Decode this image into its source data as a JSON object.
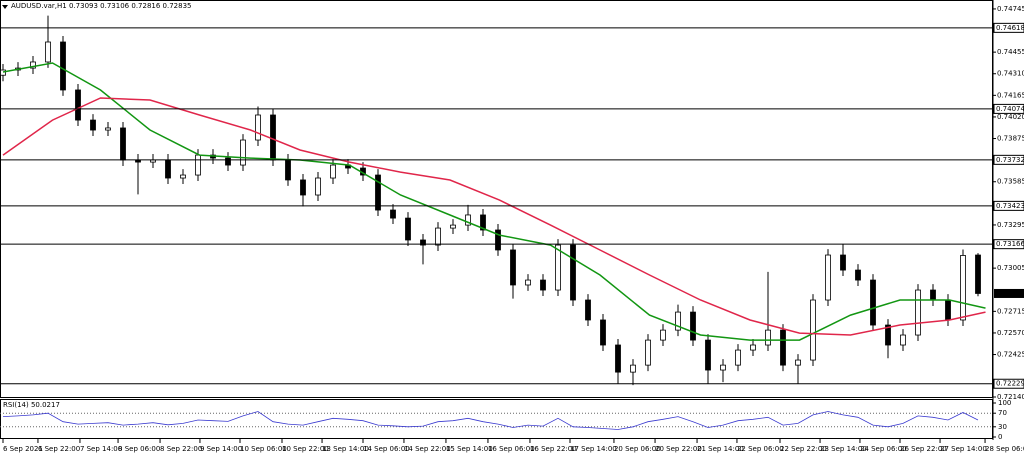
{
  "chart_data": {
    "type": "candlestick",
    "title": "AUDUSD.var,H1",
    "xlim": [
      -0.2,
      66
    ],
    "ylim": [
      0.7214,
      0.74805
    ],
    "yticks": [
      0.74745,
      0.74455,
      {
        "value": 0.7431,
        "label": "0.74310"
      },
      0.74165,
      {
        "value": 0.7402,
        "label": "0.74020"
      },
      0.73875,
      0.73585,
      0.73295,
      0.73005,
      0.72715,
      {
        "value": 0.7257,
        "label": "0.72570"
      },
      0.72425,
      {
        "value": 0.7214,
        "label": "0.72140"
      }
    ],
    "xticks": [
      {
        "value": 0,
        "label": "6 Sep 2021"
      },
      {
        "value": 2.33,
        "label": "6 Sep 22:00"
      },
      {
        "value": 5.13,
        "label": "7 Sep 14:00"
      },
      {
        "value": 7.67,
        "label": "8 Sep 06:00"
      },
      {
        "value": 10.47,
        "label": "8 Sep 22:00"
      },
      {
        "value": 13.13,
        "label": "9 Sep 14:00"
      },
      {
        "value": 15.8,
        "label": "10 Sep 06:00"
      },
      {
        "value": 18.6,
        "label": "10 Sep 22:00"
      },
      {
        "value": 21.27,
        "label": "13 Sep 14:00"
      },
      {
        "value": 24,
        "label": "14 Sep 06:00"
      },
      {
        "value": 26.73,
        "label": "14 Sep 22:00"
      },
      {
        "value": 29.53,
        "label": "15 Sep 14:00"
      },
      {
        "value": 32.33,
        "label": "16 Sep 06:00"
      },
      {
        "value": 35.13,
        "label": "16 Sep 22:00"
      },
      {
        "value": 37.8,
        "label": "17 Sep 14:00"
      },
      {
        "value": 40.73,
        "label": "20 Sep 06:00"
      },
      {
        "value": 43.47,
        "label": "20 Sep 22:00"
      },
      {
        "value": 46.27,
        "label": "21 Sep 14:00"
      },
      {
        "value": 48.93,
        "label": "22 Sep 06:00"
      },
      {
        "value": 51.8,
        "label": "22 Sep 22:00"
      },
      {
        "value": 54.47,
        "label": "23 Sep 14:00"
      },
      {
        "value": 57.13,
        "label": "24 Sep 06:00"
      },
      {
        "value": 59.8,
        "label": "26 Sep 22:00"
      },
      {
        "value": 62.47,
        "label": "27 Sep 14:00"
      },
      {
        "value": 65.47,
        "label": "28 Sep 06:00"
      }
    ],
    "open": [
      0.743,
      0.74335,
      0.74348,
      0.74389,
      0.74523,
      0.74201,
      0.73999,
      0.73932,
      0.73946,
      0.73731,
      0.73717,
      0.73731,
      0.7361,
      0.7363,
      0.73764,
      0.73744,
      0.73697,
      0.73865,
      0.74033,
      0.73731,
      0.73597,
      0.73496,
      0.7361,
      0.73697,
      0.73677,
      0.7363,
      0.73395,
      0.73341,
      0.73194,
      0.7316,
      0.73274,
      0.73294,
      0.73362,
      0.73261,
      0.73127,
      0.72892,
      0.72925,
      0.72858,
      0.7316,
      0.72791,
      0.72657,
      0.72489,
      0.72307,
      0.72354,
      0.72522,
      0.72589,
      0.7271,
      0.72522,
      0.72321,
      0.72354,
      0.72455,
      0.72489,
      0.72589,
      0.72354,
      0.72388,
      0.72791,
      0.73093,
      0.72992,
      0.72925,
      0.72623,
      0.72489,
      0.72556,
      0.72858,
      0.72791,
      0.72657,
      0.73093
    ],
    "high": [
      0.74375,
      0.74388,
      0.74429,
      0.747,
      0.74563,
      0.74241,
      0.74039,
      0.73986,
      0.73986,
      0.73771,
      0.73771,
      0.73771,
      0.7367,
      0.73804,
      0.73804,
      0.73784,
      0.73905,
      0.7409,
      0.74073,
      0.73771,
      0.73637,
      0.7365,
      0.73737,
      0.73737,
      0.73717,
      0.7367,
      0.73435,
      0.73381,
      0.73234,
      0.73314,
      0.73334,
      0.7343,
      0.73402,
      0.73301,
      0.73167,
      0.72965,
      0.72965,
      0.732,
      0.732,
      0.72831,
      0.72697,
      0.72529,
      0.72394,
      0.72562,
      0.72629,
      0.7276,
      0.7275,
      0.72562,
      0.72394,
      0.72495,
      0.72529,
      0.7298,
      0.72629,
      0.72428,
      0.72831,
      0.73133,
      0.73166,
      0.73032,
      0.72965,
      0.72663,
      0.72596,
      0.72898,
      0.72898,
      0.72831,
      0.7313,
      0.73106
    ],
    "low": [
      0.7426,
      0.74295,
      0.74308,
      0.74349,
      0.74161,
      0.73959,
      0.73892,
      0.73892,
      0.73691,
      0.735,
      0.73677,
      0.7357,
      0.7357,
      0.7359,
      0.73704,
      0.73657,
      0.73657,
      0.73825,
      0.73691,
      0.73557,
      0.7342,
      0.73456,
      0.7357,
      0.73637,
      0.7359,
      0.73355,
      0.73301,
      0.73154,
      0.7303,
      0.7312,
      0.73234,
      0.73254,
      0.73221,
      0.73087,
      0.728,
      0.72852,
      0.72818,
      0.72818,
      0.72751,
      0.72617,
      0.72449,
      0.72229,
      0.7222,
      0.72314,
      0.72482,
      0.72549,
      0.72482,
      0.72229,
      0.7224,
      0.72314,
      0.72415,
      0.72449,
      0.72314,
      0.72229,
      0.72348,
      0.72751,
      0.72952,
      0.72885,
      0.72583,
      0.724,
      0.72449,
      0.72516,
      0.72751,
      0.72617,
      0.72617,
      0.72816
    ],
    "close": [
      0.74335,
      0.74348,
      0.74389,
      0.74523,
      0.74201,
      0.73999,
      0.73932,
      0.73946,
      0.73731,
      0.73717,
      0.73731,
      0.7361,
      0.7363,
      0.73764,
      0.73744,
      0.73697,
      0.73865,
      0.74033,
      0.73731,
      0.73597,
      0.73496,
      0.7361,
      0.73697,
      0.73677,
      0.7363,
      0.73395,
      0.73341,
      0.73194,
      0.7316,
      0.73274,
      0.73294,
      0.73362,
      0.73261,
      0.73127,
      0.72892,
      0.72925,
      0.72858,
      0.7316,
      0.72791,
      0.72657,
      0.72489,
      0.72307,
      0.72354,
      0.72522,
      0.72589,
      0.7271,
      0.72522,
      0.72321,
      0.72354,
      0.72455,
      0.72489,
      0.72589,
      0.72354,
      0.72388,
      0.72791,
      0.73093,
      0.72992,
      0.72925,
      0.72623,
      0.72489,
      0.72556,
      0.72858,
      0.72791,
      0.72657,
      0.7309,
      0.72835
    ],
    "ma_x": [
      0,
      3.3,
      6.5,
      9.8,
      13.1,
      16.5,
      19.8,
      23.1,
      26.5,
      29.8,
      33.1,
      36.5,
      39.8,
      43.1,
      46.5,
      49.8,
      53.1,
      56.5,
      59.8,
      63.1,
      65.5
    ],
    "series": [
      {
        "color": "#129612",
        "values": [
          0.74322,
          0.74382,
          0.74201,
          0.73932,
          0.73764,
          0.73744,
          0.73731,
          0.73697,
          0.73496,
          0.73362,
          0.73227,
          0.7316,
          0.72959,
          0.7269,
          0.72556,
          0.72522,
          0.72522,
          0.7269,
          0.72791,
          0.72791,
          0.72737
        ]
      },
      {
        "color": "#e0264a",
        "values": [
          0.73764,
          0.73999,
          0.74147,
          0.74134,
          0.74033,
          0.73932,
          0.73798,
          0.73717,
          0.7365,
          0.73597,
          0.73462,
          0.73294,
          0.73127,
          0.72959,
          0.72791,
          0.72657,
          0.72569,
          0.72556,
          0.72623,
          0.72657,
          0.7271
        ]
      }
    ],
    "levels": [
      0.74618,
      0.74074,
      0.73732,
      0.73423,
      0.73166,
      0.72229
    ],
    "current_price": 0.72835,
    "rsi": {
      "title": "RSI(14) 50.0217",
      "color": "#3a3ad0",
      "ylim": [
        0,
        100
      ],
      "yticks": [
        100,
        70,
        30,
        0
      ],
      "levels": [
        70,
        30
      ],
      "values": [
        60,
        62,
        65,
        70,
        45,
        38,
        40,
        42,
        35,
        38,
        42,
        36,
        40,
        50,
        48,
        46,
        62,
        75,
        45,
        38,
        35,
        45,
        55,
        52,
        48,
        35,
        33,
        30,
        32,
        45,
        48,
        55,
        45,
        38,
        28,
        35,
        32,
        55,
        30,
        28,
        25,
        22,
        30,
        45,
        52,
        60,
        45,
        28,
        35,
        48,
        52,
        58,
        35,
        40,
        65,
        75,
        65,
        58,
        35,
        30,
        40,
        62,
        58,
        50,
        72,
        50.0217
      ]
    }
  }
}
